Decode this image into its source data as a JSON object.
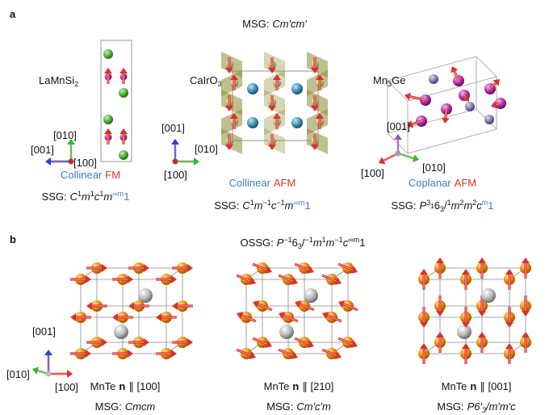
{
  "panel_a": {
    "label": "a",
    "msg_prefix": "MSG:",
    "msg": "Cm′cm′",
    "materials": [
      {
        "formula": [
          {
            "text": "LaMnSi"
          },
          {
            "sub": "2"
          }
        ],
        "axes": [
          "[010]",
          "[001]",
          "[100]"
        ],
        "order_type": "Collinear",
        "order": "FM",
        "ssg_prefix": "SSG:",
        "ssg": [
          {
            "text": "C"
          },
          {
            "sup": "1"
          },
          {
            "text": "m"
          },
          {
            "sup": "1"
          },
          {
            "text": "c"
          },
          {
            "sup": "1"
          },
          {
            "text": "m"
          },
          {
            "sup": "∞m",
            "color": "#3a7dc9"
          },
          {
            "text": "1",
            "color": "#3a7dc9"
          }
        ]
      },
      {
        "formula": [
          {
            "text": "CaIrO"
          },
          {
            "sub": "3"
          }
        ],
        "axes": [
          "[001]",
          "[010]",
          "[100]"
        ],
        "order_type": "Collinear",
        "order": "AFM",
        "ssg_prefix": "SSG:",
        "ssg": [
          {
            "text": "C"
          },
          {
            "sup": "1"
          },
          {
            "text": "m"
          },
          {
            "sup": "−1"
          },
          {
            "text": "c"
          },
          {
            "sup": "−1"
          },
          {
            "text": "m"
          },
          {
            "sup": "∞m",
            "color": "#3a7dc9"
          },
          {
            "text": "1",
            "color": "#3a7dc9"
          }
        ]
      },
      {
        "formula": [
          {
            "text": "Mn"
          },
          {
            "sub": "3"
          },
          {
            "text": "Ge"
          }
        ],
        "axes": [
          "[001]",
          "[100]",
          "[010]"
        ],
        "order_type": "Coplanar",
        "order": "AFM",
        "ssg_prefix": "SSG:",
        "ssg": [
          {
            "text": "P"
          },
          {
            "sup": "3"
          },
          {
            "supsub": "1"
          },
          {
            "text": "6"
          },
          {
            "sub": "3"
          },
          {
            "text": "/"
          },
          {
            "sup": "1"
          },
          {
            "text": "m"
          },
          {
            "sup": "2"
          },
          {
            "text": "m"
          },
          {
            "sup": "2"
          },
          {
            "text": "c"
          },
          {
            "sup": "m",
            "color": "#3a7dc9"
          },
          {
            "text": "1",
            "color": "#3a7dc9"
          }
        ]
      }
    ]
  },
  "panel_b": {
    "label": "b",
    "ossg_prefix": "OSSG:",
    "ossg": [
      {
        "text": "P"
      },
      {
        "sup": "−1"
      },
      {
        "text": "6"
      },
      {
        "sub": "3"
      },
      {
        "text": "/"
      },
      {
        "sup": "−1"
      },
      {
        "text": "m"
      },
      {
        "sup": "1"
      },
      {
        "text": "m"
      },
      {
        "sup": "−1"
      },
      {
        "text": "c"
      },
      {
        "sup": "∞m"
      },
      {
        "text": "1"
      }
    ],
    "axes": [
      "[001]",
      "[010]",
      "[100]"
    ],
    "materials": [
      {
        "material": "MnTe",
        "vector": "n",
        "direction": "∥ [100]",
        "msg_prefix": "MSG:",
        "msg": [
          {
            "text": "Cmcm"
          }
        ]
      },
      {
        "material": "MnTe",
        "vector": "n",
        "direction": "∥ [210]",
        "msg_prefix": "MSG:",
        "msg": [
          {
            "text": "Cm′c′m"
          }
        ]
      },
      {
        "material": "MnTe",
        "vector": "n",
        "direction": "∥ [001]",
        "msg_prefix": "MSG:",
        "msg": [
          {
            "text": "P6′"
          },
          {
            "sub": "3"
          },
          {
            "text": "/m′m′c"
          }
        ]
      }
    ]
  }
}
